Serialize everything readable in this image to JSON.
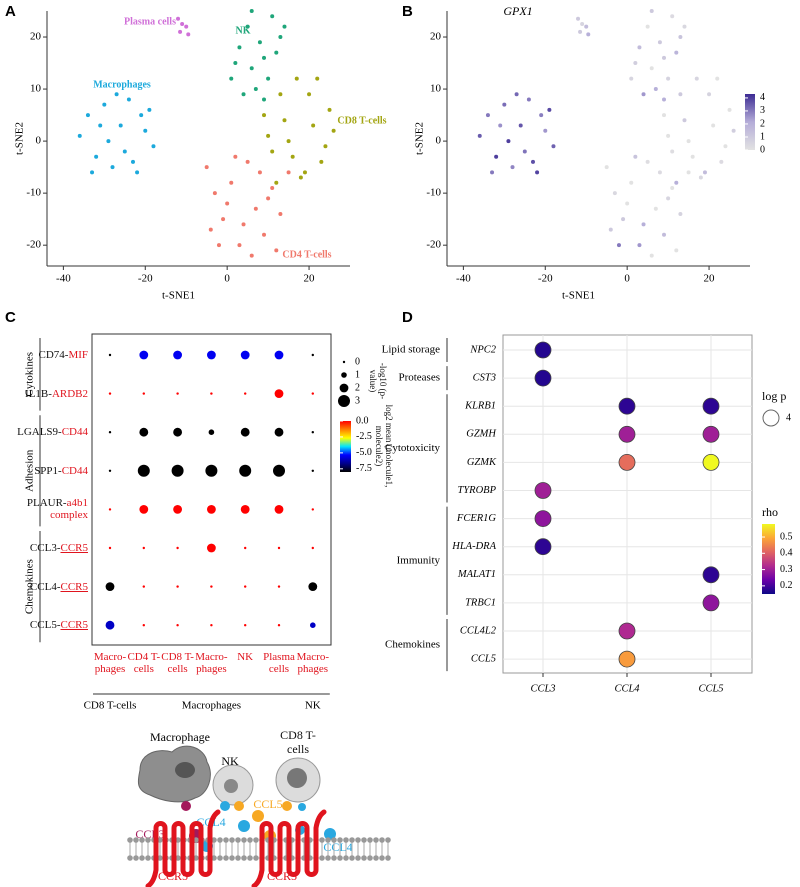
{
  "panel_labels": [
    "A",
    "B",
    "C",
    "D"
  ],
  "chart_data": [
    {
      "type": "scatter",
      "xlabel": "t-SNE1",
      "ylabel": "t-SNE2",
      "xlim": [
        -44,
        30
      ],
      "ylim": [
        -24,
        25
      ],
      "xticks": [
        -40,
        -20,
        0,
        20
      ],
      "yticks": [
        -20,
        -10,
        0,
        10,
        20
      ],
      "series": [
        {
          "name": "Plasma cells",
          "color": "#d070d8",
          "x": [
            -12,
            -11,
            -10,
            -11.5,
            -9.5
          ],
          "y": [
            23.5,
            22.5,
            22,
            21,
            20.5
          ]
        },
        {
          "name": "NK",
          "color": "#1fa67a",
          "x": [
            1,
            3,
            5,
            7,
            9,
            11,
            13,
            2,
            4,
            6,
            8,
            10,
            12,
            14,
            6,
            9
          ],
          "y": [
            12,
            18,
            22,
            10,
            16,
            24,
            20,
            15,
            9,
            14,
            19,
            12,
            17,
            22,
            25,
            8
          ]
        },
        {
          "name": "Macrophages",
          "color": "#1ca9dc",
          "x": [
            -36,
            -34,
            -32,
            -30,
            -28,
            -26,
            -24,
            -22,
            -20,
            -18,
            -33,
            -29,
            -25,
            -21,
            -27,
            -23,
            -31,
            -19
          ],
          "y": [
            1,
            5,
            -3,
            7,
            -5,
            3,
            8,
            -6,
            2,
            -1,
            -6,
            0,
            -2,
            5,
            9,
            -4,
            3,
            6
          ]
        },
        {
          "name": "CD8 T-cells",
          "color": "#a3a512",
          "x": [
            9,
            11,
            13,
            15,
            17,
            19,
            21,
            23,
            25,
            12,
            16,
            20,
            24,
            14,
            18,
            22,
            26,
            10
          ],
          "y": [
            5,
            -2,
            9,
            0,
            12,
            -6,
            3,
            -4,
            6,
            -8,
            -3,
            9,
            -1,
            4,
            -7,
            12,
            2,
            1
          ]
        },
        {
          "name": "CD4 T-cells",
          "color": "#f0796c",
          "x": [
            -5,
            -3,
            -1,
            1,
            3,
            5,
            7,
            9,
            11,
            13,
            15,
            -4,
            0,
            4,
            8,
            12,
            2,
            6,
            10,
            -2
          ],
          "y": [
            -5,
            -10,
            -15,
            -8,
            -20,
            -4,
            -13,
            -18,
            -9,
            -14,
            -6,
            -17,
            -12,
            -16,
            -6,
            -21,
            -3,
            -22,
            -11,
            -20
          ]
        }
      ]
    },
    {
      "type": "scatter",
      "title": "GPX1",
      "xlabel": "t-SNE1",
      "ylabel": "t-SNE2",
      "xlim": [
        -44,
        30
      ],
      "ylim": [
        -24,
        25
      ],
      "xticks": [
        -40,
        -20,
        0,
        20
      ],
      "yticks": [
        -20,
        -10,
        0,
        10,
        20
      ],
      "clim": [
        0,
        4.3
      ],
      "cticks": [
        0,
        1,
        2,
        3,
        4
      ],
      "colormap": [
        "#e2e2e2",
        "#b4acd8",
        "#3d2c94"
      ],
      "series": [
        {
          "values": [
            1,
            0.5,
            1.5,
            1,
            2
          ]
        },
        {
          "values": [
            0.5,
            1.5,
            0,
            2,
            1,
            0.3,
            1.2,
            0.8,
            2.5,
            0,
            1,
            0.6,
            1.8,
            0.4,
            1,
            2
          ]
        },
        {
          "values": [
            3.5,
            3,
            4,
            3.2,
            2.8,
            3.6,
            3,
            3.9,
            2.5,
            3.4,
            3,
            4,
            3.1,
            2.9,
            3.3,
            3.7,
            2.6,
            3.8
          ]
        },
        {
          "values": [
            0,
            0.2,
            1,
            0,
            0.5,
            1.5,
            0,
            0.3,
            0,
            2,
            0,
            0.6,
            0,
            1,
            0.4,
            0,
            0.8,
            0
          ]
        },
        {
          "values": [
            0,
            0.4,
            1,
            0,
            2.5,
            0.2,
            0,
            1.5,
            0,
            0.6,
            0,
            1,
            0,
            2,
            0.3,
            0,
            1.2,
            0,
            0.5,
            3
          ]
        }
      ]
    },
    {
      "type": "dotplot",
      "rows": [
        {
          "ligand": "CD74-",
          "receptor": "MIF",
          "category": "Cytokines"
        },
        {
          "ligand": "IL1B-",
          "receptor": "ARDB2",
          "category": "Cytokines"
        },
        {
          "ligand": "LGALS9-",
          "receptor": "CD44",
          "category": "Adhesion"
        },
        {
          "ligand": "SPP1-",
          "receptor": "CD44",
          "category": "Adhesion"
        },
        {
          "ligand": "PLAUR-",
          "receptor": "a4b1 complex",
          "category": "Adhesion"
        },
        {
          "ligand": "CCL3-",
          "receptor": "CCR5",
          "category": "Chemokines",
          "underlined": true
        },
        {
          "ligand": "CCL4-",
          "receptor": "CCR5",
          "category": "Chemokines",
          "underlined": true
        },
        {
          "ligand": "CCL5-",
          "receptor": "CCR5",
          "category": "Chemokines",
          "underlined": true
        }
      ],
      "columns": [
        {
          "label": "Macro-phages",
          "group": "CD8 T-cells"
        },
        {
          "label": "CD4 T-cells",
          "group": "Macrophages"
        },
        {
          "label": "CD8 T-cells",
          "group": "Macrophages"
        },
        {
          "label": "Macro-phages",
          "group": "Macrophages"
        },
        {
          "label": "NK",
          "group": "Macrophages"
        },
        {
          "label": "Plasma cells",
          "group": "Macrophages"
        },
        {
          "label": "Macro-phages",
          "group": "NK"
        }
      ],
      "size": [
        [
          0,
          2,
          2,
          2,
          2,
          2,
          0
        ],
        [
          0,
          0,
          0,
          0,
          0,
          2,
          0
        ],
        [
          0,
          2,
          2,
          1,
          2,
          2,
          0
        ],
        [
          0,
          3,
          3,
          3,
          3,
          3,
          0
        ],
        [
          0,
          2,
          2,
          2,
          2,
          2,
          0
        ],
        [
          0,
          0,
          0,
          2,
          0,
          0,
          0
        ],
        [
          2,
          0,
          0,
          0,
          0,
          0,
          2
        ],
        [
          2,
          0,
          0,
          0,
          0,
          0,
          1
        ]
      ],
      "color": [
        [
          -8,
          -5.5,
          -5.5,
          -5.5,
          -5.5,
          -5.5,
          -8
        ],
        [
          0,
          0,
          0,
          0,
          0,
          0,
          0
        ],
        [
          -8,
          -8,
          -8,
          -8,
          -8,
          -8,
          -8
        ],
        [
          -8,
          -8,
          -8,
          -8,
          -8,
          -8,
          -8
        ],
        [
          0,
          0,
          0,
          0,
          0,
          0,
          0
        ],
        [
          0,
          0,
          0,
          0,
          0,
          0,
          0
        ],
        [
          -8,
          0,
          0,
          0,
          0,
          0,
          -8
        ],
        [
          -6,
          0,
          0,
          0,
          0,
          0,
          -6
        ]
      ],
      "size_title": "-log10 (p-value)",
      "size_legend": [
        0,
        1,
        2,
        3
      ],
      "color_title": "log2 mean (molecule1, molecule2)",
      "clim": [
        -8,
        0
      ],
      "cticks": [
        {
          "value": 0,
          "label": "0.0"
        },
        -2.5,
        {
          "value": -5,
          "label": "-5.0"
        },
        -7.5
      ],
      "colormap": [
        "#000000",
        "#00008b",
        "#0000ff",
        "#00e5ff",
        "#ffff00",
        "#ff8000",
        "#ff0000"
      ]
    },
    {
      "type": "dotplot",
      "rows": [
        {
          "label": "NPC2",
          "group": "Lipid storage"
        },
        {
          "label": "CST3",
          "group": "Proteases"
        },
        {
          "label": "KLRB1",
          "group": "Cytotoxicity"
        },
        {
          "label": "GZMH",
          "group": "Cytotoxicity"
        },
        {
          "label": "GZMK",
          "group": "Cytotoxicity"
        },
        {
          "label": "TYROBP",
          "group": "Cytotoxicity"
        },
        {
          "label": "FCER1G",
          "group": "Immunity"
        },
        {
          "label": "HLA-DRA",
          "group": "Immunity"
        },
        {
          "label": "MALAT1",
          "group": "Immunity"
        },
        {
          "label": "TRBC1",
          "group": "Immunity"
        },
        {
          "label": "CCL4L2",
          "group": "Chemokines"
        },
        {
          "label": "CCL5",
          "group": "Chemokines"
        }
      ],
      "categories": [
        "CCL3",
        "CCL4",
        "CCL5"
      ],
      "points": [
        {
          "row": "NPC2",
          "col": "CCL3",
          "rho": 0.17,
          "logp": 4
        },
        {
          "row": "CST3",
          "col": "CCL3",
          "rho": 0.17,
          "logp": 4
        },
        {
          "row": "KLRB1",
          "col": "CCL4",
          "rho": 0.18,
          "logp": 4
        },
        {
          "row": "KLRB1",
          "col": "CCL5",
          "rho": 0.18,
          "logp": 4
        },
        {
          "row": "GZMH",
          "col": "CCL4",
          "rho": 0.3,
          "logp": 4
        },
        {
          "row": "GZMH",
          "col": "CCL5",
          "rho": 0.3,
          "logp": 4
        },
        {
          "row": "GZMK",
          "col": "CCL4",
          "rho": 0.42,
          "logp": 4
        },
        {
          "row": "GZMK",
          "col": "CCL5",
          "rho": 0.58,
          "logp": 4
        },
        {
          "row": "TYROBP",
          "col": "CCL3",
          "rho": 0.3,
          "logp": 4
        },
        {
          "row": "FCER1G",
          "col": "CCL3",
          "rho": 0.28,
          "logp": 4
        },
        {
          "row": "HLA-DRA",
          "col": "CCL3",
          "rho": 0.18,
          "logp": 4
        },
        {
          "row": "MALAT1",
          "col": "CCL5",
          "rho": 0.18,
          "logp": 4
        },
        {
          "row": "TRBC1",
          "col": "CCL5",
          "rho": 0.28,
          "logp": 4
        },
        {
          "row": "CCL4L2",
          "col": "CCL4",
          "rho": 0.32,
          "logp": 4
        },
        {
          "row": "CCL5",
          "col": "CCL4",
          "rho": 0.48,
          "logp": 4
        }
      ],
      "size_title": "log p",
      "size_legend": [
        4
      ],
      "color_title": "rho",
      "clim": [
        0.15,
        0.58
      ],
      "cticks": [
        0.2,
        0.3,
        0.4,
        0.5
      ],
      "colormap": [
        "#0d0887",
        "#6a00a8",
        "#b12a90",
        "#e16462",
        "#fca636",
        "#f0f921"
      ],
      "grid": true
    }
  ],
  "diagram": {
    "cells": [
      "Macrophage",
      "NK",
      "CD8 T-cells"
    ],
    "ligands": [
      "CCL3",
      "CCL4",
      "CCL5",
      "CCL4"
    ],
    "receptors": [
      "CCR5",
      "CCR5"
    ]
  }
}
